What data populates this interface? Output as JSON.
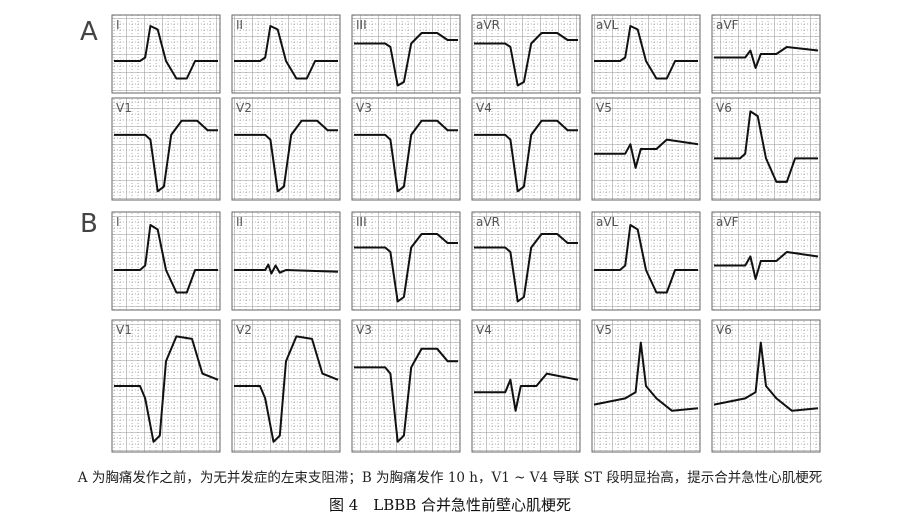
{
  "groups": [
    {
      "label": "A",
      "rows": [
        [
          "I",
          "II",
          "III",
          "aVR",
          "aVL",
          "aVF"
        ],
        [
          "V1",
          "V2",
          "V3",
          "V4",
          "V5",
          "V6"
        ]
      ]
    },
    {
      "label": "B",
      "rows": [
        [
          "I",
          "II",
          "III",
          "aVR",
          "aVL",
          "aVF"
        ],
        [
          "V1",
          "V2",
          "V3",
          "V4",
          "V5",
          "V6"
        ]
      ]
    }
  ],
  "caption": "A 为胸痛发作之前，为无并发症的左束支阻滞；B 为胸痛发作 10 h，V1 ~ V4 导联 ST 段明显抬高，提示合并急性心肌梗死",
  "figure_title": "图 4　LBBB 合并急性前壁心肌梗死"
}
